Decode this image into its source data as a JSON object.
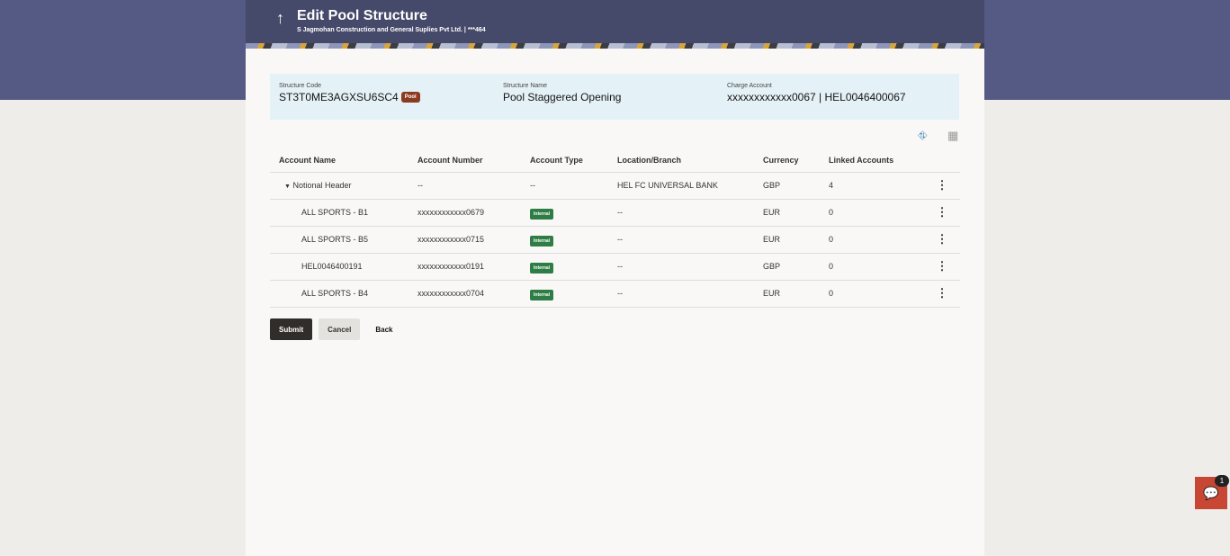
{
  "header": {
    "title": "Edit Pool Structure",
    "subtitle": "S Jagmohan Construction and General Suplies Pvt Ltd. | ***464"
  },
  "info": {
    "structure_code_label": "Structure Code",
    "structure_code": "ST3T0ME3AGXSU6SC4",
    "structure_badge": "Pool",
    "structure_name_label": "Structure Name",
    "structure_name": "Pool Staggered Opening",
    "charge_account_label": "Charge Account",
    "charge_account": "xxxxxxxxxxxx0067 | HEL0046400067"
  },
  "table": {
    "headers": [
      "Account Name",
      "Account Number",
      "Account Type",
      "Location/Branch",
      "Currency",
      "Linked Accounts"
    ],
    "rows": [
      {
        "name": "Notional Header",
        "number": "--",
        "type": "--",
        "location": "HEL FC UNIVERSAL BANK",
        "currency": "GBP",
        "linked": "4"
      },
      {
        "name": "ALL SPORTS - B1",
        "number": "xxxxxxxxxxxx0679",
        "type": "Internal",
        "location": "--",
        "currency": "EUR",
        "linked": "0"
      },
      {
        "name": "ALL SPORTS - B5",
        "number": "xxxxxxxxxxxx0715",
        "type": "Internal",
        "location": "--",
        "currency": "EUR",
        "linked": "0"
      },
      {
        "name": "HEL0046400191",
        "number": "xxxxxxxxxxxx0191",
        "type": "Internal",
        "location": "--",
        "currency": "GBP",
        "linked": "0"
      },
      {
        "name": "ALL SPORTS - B4",
        "number": "xxxxxxxxxxxx0704",
        "type": "Internal",
        "location": "--",
        "currency": "EUR",
        "linked": "0"
      }
    ]
  },
  "buttons": {
    "submit": "Submit",
    "cancel": "Cancel",
    "back": "Back"
  },
  "chat": {
    "count": "1"
  }
}
